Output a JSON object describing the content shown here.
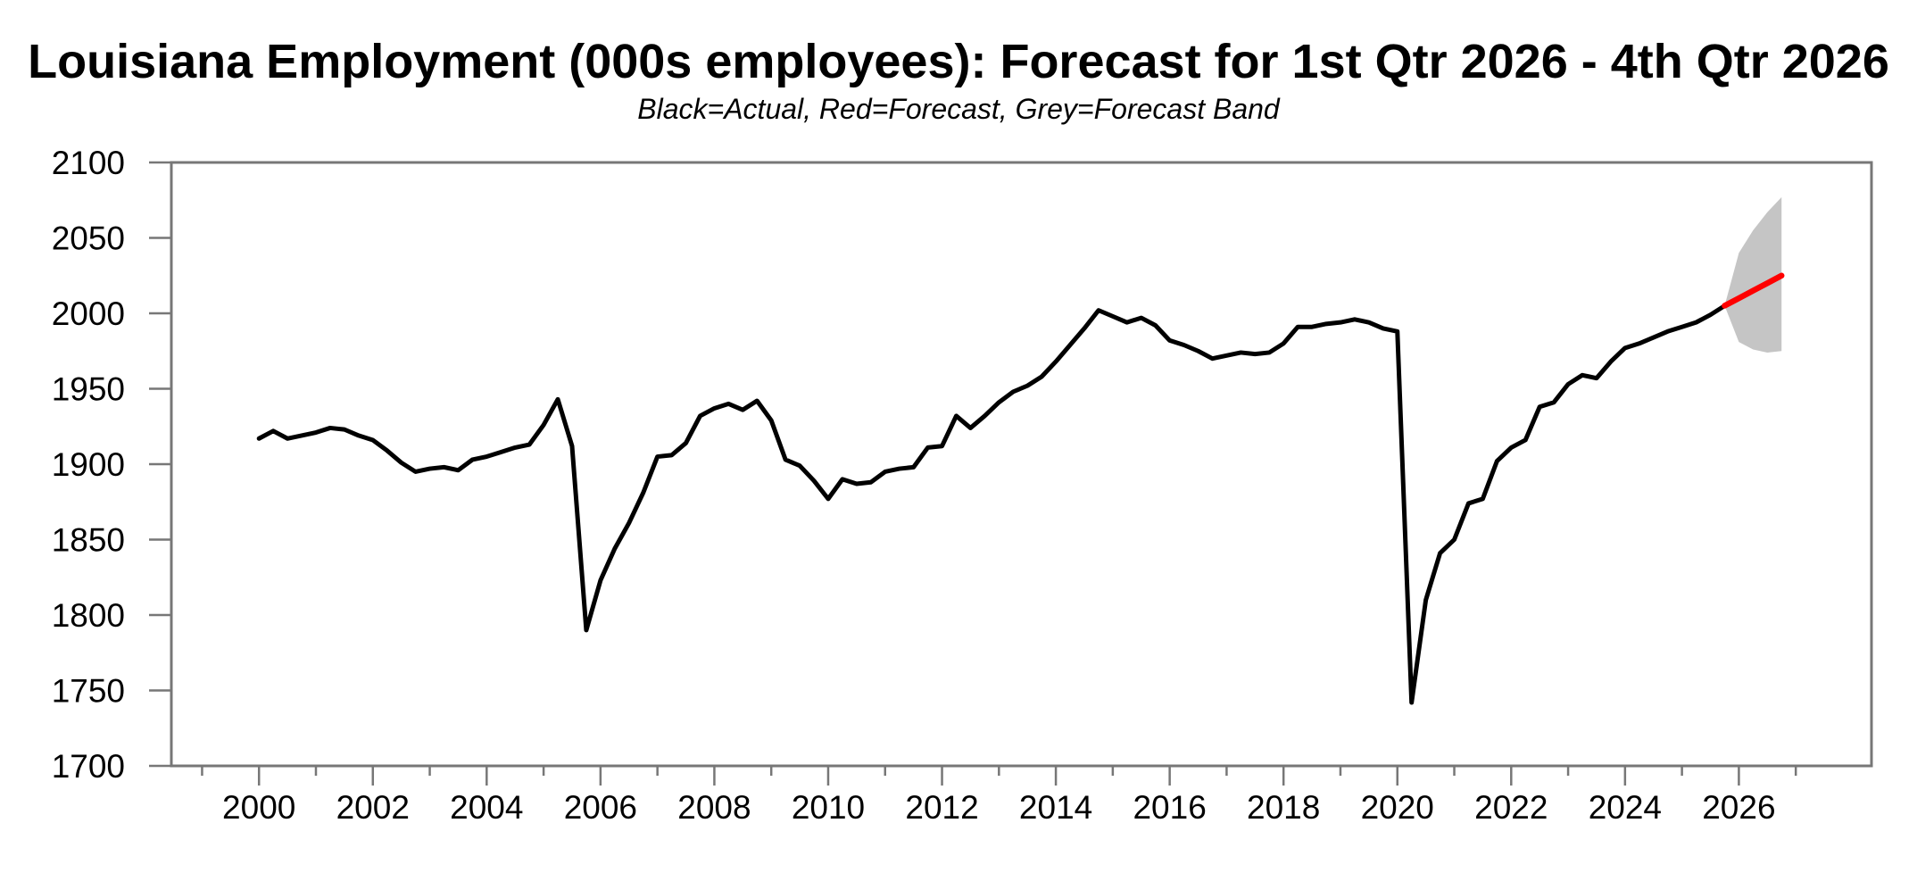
{
  "chart_data": {
    "type": "line",
    "title": "Louisiana Employment (000s employees): Forecast for 1st Qtr 2026 - 4th Qtr 2026",
    "subtitle": "Black=Actual, Red=Forecast, Grey=Forecast Band",
    "xlim": [
      1998.46,
      2028.33
    ],
    "ylim": [
      1700,
      2100
    ],
    "x_step": 0.25,
    "grid": false,
    "legend_position": "none (legend encoded in subtitle text)",
    "frame_color": "#777777",
    "tick_label_color": "#000000",
    "y_ticks": [
      2100,
      2050,
      2000,
      1950,
      1900,
      1850,
      1800,
      1750,
      1700
    ],
    "x_major_ticks": [
      2000,
      2002,
      2004,
      2006,
      2008,
      2010,
      2012,
      2014,
      2016,
      2018,
      2020,
      2022,
      2024,
      2026
    ],
    "x_minor_ticks": [
      1999,
      2001,
      2003,
      2005,
      2007,
      2009,
      2011,
      2013,
      2015,
      2017,
      2019,
      2021,
      2023,
      2025,
      2027
    ],
    "series": [
      {
        "name": "Actual",
        "color": "#000000",
        "x_start": 2000.0,
        "values": [
          1917,
          1922,
          1917,
          1919,
          1921,
          1924,
          1923,
          1919,
          1916,
          1909,
          1901,
          1895,
          1897,
          1898,
          1896,
          1903,
          1905,
          1908,
          1911,
          1913,
          1926,
          1943,
          1912,
          1790,
          1823,
          1844,
          1861,
          1881,
          1905,
          1906,
          1914,
          1932,
          1937,
          1940,
          1936,
          1942,
          1929,
          1903,
          1899,
          1889,
          1877,
          1890,
          1887,
          1888,
          1895,
          1897,
          1898,
          1911,
          1912,
          1932,
          1924,
          1932,
          1941,
          1948,
          1952,
          1958,
          1968,
          1979,
          1990,
          2002,
          1998,
          1994,
          1997,
          1992,
          1982,
          1979,
          1975,
          1970,
          1972,
          1974,
          1973,
          1974,
          1980,
          1991,
          1991,
          1993,
          1994,
          1996,
          1994,
          1990,
          1988,
          1742,
          1810,
          1841,
          1850,
          1874,
          1877,
          1902,
          1911,
          1916,
          1938,
          1941,
          1953,
          1959,
          1957,
          1968,
          1977,
          1980,
          1984,
          1988,
          1991,
          1994,
          1999,
          2005
        ]
      },
      {
        "name": "Forecast",
        "color": "#ff0000",
        "x_start": 2025.75,
        "values": [
          2005,
          2010,
          2015,
          2020,
          2025
        ]
      }
    ],
    "band": {
      "name": "Forecast Band",
      "color": "#c5c5c5",
      "x_start": 2025.75,
      "upper": [
        2005,
        2040,
        2055,
        2067,
        2077
      ],
      "lower": [
        2005,
        1981,
        1976,
        1974,
        1975
      ]
    }
  }
}
